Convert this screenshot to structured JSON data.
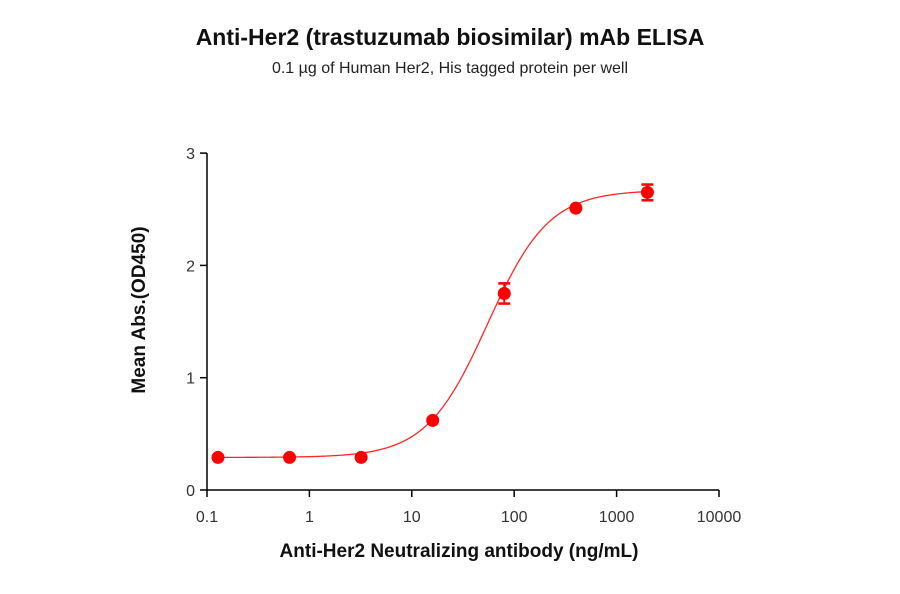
{
  "chart_data": {
    "type": "scatter",
    "title": "Anti-Her2 (trastuzumab biosimilar) mAb ELISA",
    "subtitle": "0.1 µg of Human Her2, His tagged protein per well",
    "xlabel": "Anti-Her2 Neutralizing antibody (ng/mL)",
    "ylabel": "Mean Abs.(OD450)",
    "xscale": "log",
    "xlim": [
      0.1,
      10000
    ],
    "ylim": [
      0,
      3
    ],
    "xticks": [
      "0.1",
      "1",
      "10",
      "100",
      "1000",
      "10000"
    ],
    "yticks": [
      "0",
      "1",
      "2",
      "3"
    ],
    "grid": false,
    "legend": null,
    "color": "#ff0000",
    "series": [
      {
        "name": "Anti-Her2 (trastuzumab biosimilar) mAb",
        "x": [
          0.128,
          0.64,
          3.2,
          16,
          80,
          400,
          2000
        ],
        "y": [
          0.29,
          0.29,
          0.29,
          0.62,
          1.75,
          2.51,
          2.65
        ],
        "error": [
          0.01,
          0.01,
          0.01,
          0.02,
          0.09,
          0.02,
          0.07
        ],
        "fit": "4PL sigmoid curve"
      }
    ]
  }
}
